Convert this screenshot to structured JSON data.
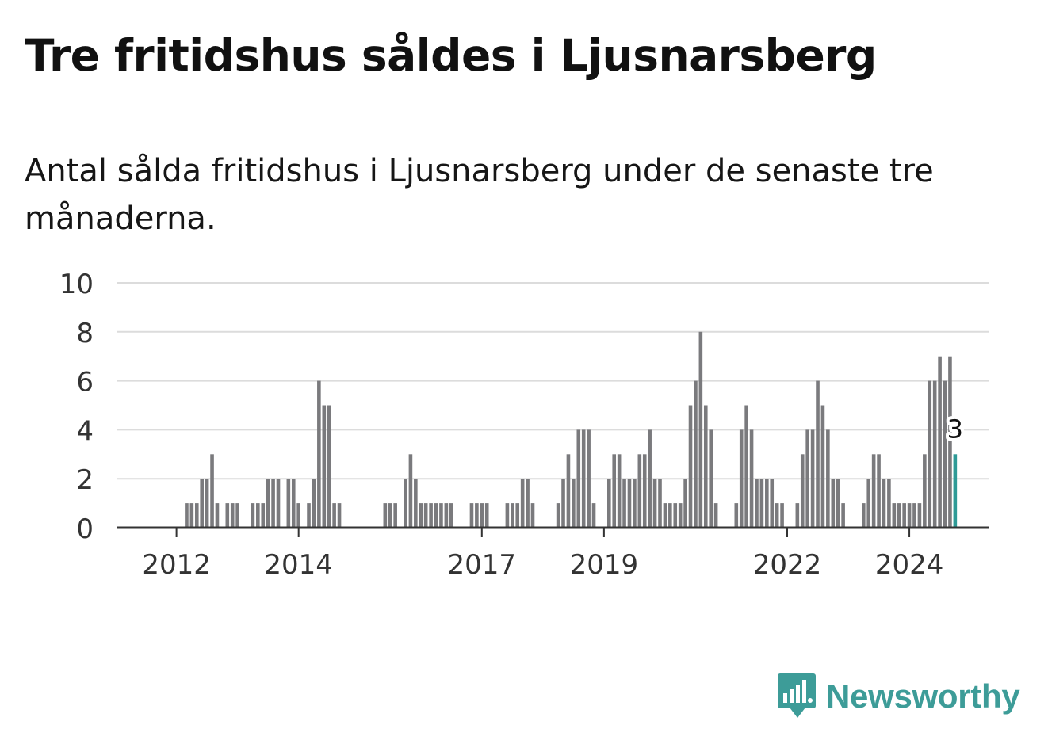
{
  "header": {
    "title": "Tre fritidshus såldes i Ljusnarsberg",
    "subtitle": "Antal sålda fritidshus i Ljusnarsberg under de senaste tre månaderna."
  },
  "brand": {
    "name": "Newsworthy",
    "color": "#3d9c98"
  },
  "chart_data": {
    "type": "bar",
    "title": "Tre fritidshus såldes i Ljusnarsberg",
    "subtitle": "Antal sålda fritidshus i Ljusnarsberg under de senaste tre månaderna.",
    "xlabel": "",
    "ylabel": "",
    "x_start": "2011-03",
    "x_interval": "month",
    "ylim": [
      0,
      10
    ],
    "yticks": [
      0,
      2,
      4,
      6,
      8,
      10
    ],
    "xticks": [
      {
        "label": "2012",
        "month": "2012-01"
      },
      {
        "label": "2014",
        "month": "2014-01"
      },
      {
        "label": "2017",
        "month": "2017-01"
      },
      {
        "label": "2019",
        "month": "2019-01"
      },
      {
        "label": "2022",
        "month": "2022-01"
      },
      {
        "label": "2024",
        "month": "2024-01"
      }
    ],
    "grid": true,
    "legend": "none",
    "bar_color": "#7a7a7d",
    "highlight_color": "#2e9a96",
    "highlight_label": "3",
    "values": [
      0,
      0,
      0,
      0,
      0,
      0,
      0,
      0,
      0,
      0,
      0,
      0,
      1,
      1,
      1,
      2,
      2,
      3,
      1,
      0,
      1,
      1,
      1,
      0,
      0,
      1,
      1,
      1,
      2,
      2,
      2,
      0,
      2,
      2,
      1,
      0,
      1,
      2,
      6,
      5,
      5,
      1,
      1,
      0,
      0,
      0,
      0,
      0,
      0,
      0,
      0,
      1,
      1,
      1,
      0,
      2,
      3,
      2,
      1,
      1,
      1,
      1,
      1,
      1,
      1,
      0,
      0,
      0,
      1,
      1,
      1,
      1,
      0,
      0,
      0,
      1,
      1,
      1,
      2,
      2,
      1,
      0,
      0,
      0,
      0,
      1,
      2,
      3,
      2,
      4,
      4,
      4,
      1,
      0,
      0,
      2,
      3,
      3,
      2,
      2,
      2,
      3,
      3,
      4,
      2,
      2,
      1,
      1,
      1,
      1,
      2,
      5,
      6,
      8,
      5,
      4,
      1,
      0,
      0,
      0,
      1,
      4,
      5,
      4,
      2,
      2,
      2,
      2,
      1,
      1,
      0,
      0,
      1,
      3,
      4,
      4,
      6,
      5,
      4,
      2,
      2,
      1,
      0,
      0,
      0,
      1,
      2,
      3,
      3,
      2,
      2,
      1,
      1,
      1,
      1,
      1,
      1,
      3,
      6,
      6,
      7,
      6,
      7,
      3
    ]
  }
}
